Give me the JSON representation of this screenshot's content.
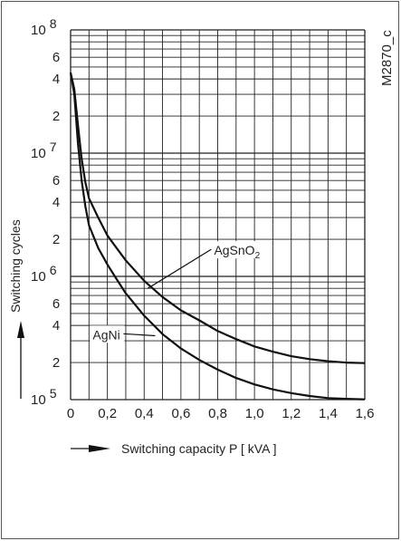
{
  "chart_data": {
    "type": "line",
    "code_label": "M2870_c",
    "xlabel": "Switching capacity  P   [ kVA ]",
    "ylabel": "Switching cycles",
    "xlim": [
      0,
      1.6
    ],
    "ylim": [
      100000,
      100000000
    ],
    "y_scale": "log",
    "grid": true,
    "x_ticks": [
      {
        "value": 0,
        "label": "0"
      },
      {
        "value": 0.2,
        "label": "0,2"
      },
      {
        "value": 0.4,
        "label": "0,4"
      },
      {
        "value": 0.6,
        "label": "0,6"
      },
      {
        "value": 0.8,
        "label": "0,8"
      },
      {
        "value": 1.0,
        "label": "1,0"
      },
      {
        "value": 1.2,
        "label": "1,2"
      },
      {
        "value": 1.4,
        "label": "1,4"
      },
      {
        "value": 1.6,
        "label": "1,6"
      }
    ],
    "y_decade_ticks": [
      {
        "value": 100000,
        "base": "10",
        "exp": "5"
      },
      {
        "value": 1000000,
        "base": "10",
        "exp": "6"
      },
      {
        "value": 10000000,
        "base": "10",
        "exp": "7"
      },
      {
        "value": 100000000,
        "base": "10",
        "exp": "8"
      }
    ],
    "y_minor_ticks": [
      {
        "value": 200000,
        "label": "2"
      },
      {
        "value": 400000,
        "label": "4"
      },
      {
        "value": 600000,
        "label": "6"
      },
      {
        "value": 2000000,
        "label": "2"
      },
      {
        "value": 4000000,
        "label": "4"
      },
      {
        "value": 6000000,
        "label": "6"
      },
      {
        "value": 20000000,
        "label": "2"
      },
      {
        "value": 40000000,
        "label": "4"
      },
      {
        "value": 60000000,
        "label": "6"
      }
    ],
    "series": [
      {
        "name": "AgSnO2",
        "label_base": "AgSnO",
        "label_sub": "2",
        "label_at": [
          0.78,
          1550000
        ],
        "pointer_to": [
          0.42,
          800000
        ],
        "x": [
          0.0,
          0.02,
          0.04,
          0.06,
          0.08,
          0.1,
          0.15,
          0.2,
          0.25,
          0.3,
          0.4,
          0.5,
          0.6,
          0.7,
          0.8,
          0.9,
          1.0,
          1.1,
          1.2,
          1.3,
          1.4,
          1.5,
          1.6
        ],
        "y": [
          45000000,
          33000000,
          17000000,
          9000000,
          5800000,
          4300000,
          3000000,
          2150000,
          1700000,
          1350000,
          920000,
          680000,
          530000,
          440000,
          360000,
          310000,
          270000,
          245000,
          225000,
          213000,
          205000,
          200000,
          198000
        ]
      },
      {
        "name": "AgNi",
        "label_base": "AgNi",
        "label_sub": "",
        "label_at": [
          0.12,
          320000
        ],
        "pointer_to": [
          0.46,
          330000
        ],
        "x": [
          0.0,
          0.02,
          0.04,
          0.06,
          0.08,
          0.1,
          0.15,
          0.2,
          0.25,
          0.3,
          0.4,
          0.5,
          0.6,
          0.7,
          0.8,
          0.9,
          1.0,
          1.1,
          1.2,
          1.3,
          1.4,
          1.5,
          1.6
        ],
        "y": [
          45000000,
          30000000,
          12000000,
          6000000,
          3700000,
          2600000,
          1700000,
          1250000,
          950000,
          730000,
          480000,
          340000,
          260000,
          210000,
          175000,
          150000,
          133000,
          121000,
          113000,
          107000,
          103000,
          101500,
          100500
        ]
      }
    ]
  }
}
